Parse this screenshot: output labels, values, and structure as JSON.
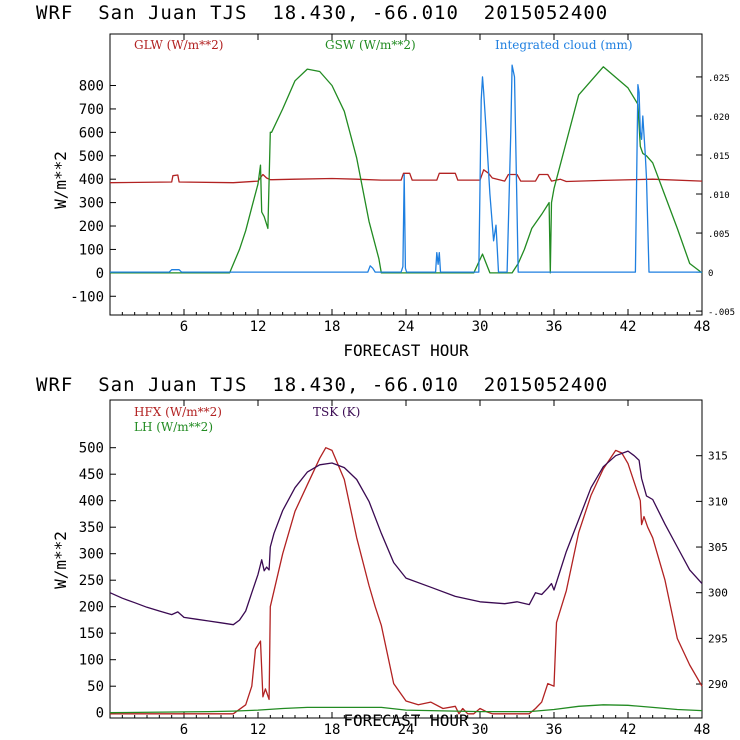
{
  "charts": [
    {
      "title": "WRF  San Juan TJS  18.430, -66.010  2015052400",
      "chart_data": {
        "type": "line",
        "xlabel": "FORECAST HOUR",
        "ylabel": "W/m**2",
        "xlim": [
          0,
          48
        ],
        "ylim": [
          -180,
          1020
        ],
        "x_ticks": [
          6,
          12,
          18,
          24,
          30,
          36,
          42,
          48
        ],
        "y_ticks": [
          -100,
          0,
          100,
          200,
          300,
          400,
          500,
          600,
          700,
          800
        ],
        "y2lim": [
          -0.0055,
          0.0305
        ],
        "y2_ticks": [
          "-.005",
          "0",
          ".005",
          ".010",
          ".015",
          ".020",
          ".025"
        ],
        "y2_tick_values": [
          -0.005,
          0,
          0.005,
          0.01,
          0.015,
          0.02,
          0.025
        ],
        "series": [
          {
            "name": "GLW (W/m**2)",
            "color": "#b22222",
            "axis": "left",
            "x": [
              0,
              5,
              5.1,
              5.5,
              5.6,
              10,
              12,
              12.4,
              12.7,
              13,
              13.2,
              15,
              18,
              20,
              22,
              23.6,
              23.8,
              24.3,
              24.5,
              26.5,
              26.7,
              28,
              28.2,
              30,
              30.3,
              30.7,
              31,
              32,
              32.3,
              33,
              33.3,
              34.5,
              34.8,
              35.5,
              35.8,
              36.5,
              37,
              40,
              44,
              48
            ],
            "y": [
              385,
              388,
              415,
              418,
              388,
              385,
              392,
              420,
              405,
              398,
              398,
              400,
              403,
              400,
              396,
              396,
              425,
              425,
              396,
              396,
              425,
              425,
              396,
              396,
              440,
              425,
              405,
              392,
              420,
              420,
              392,
              392,
              420,
              420,
              392,
              400,
              390,
              395,
              400,
              392
            ]
          },
          {
            "name": "GSW (W/m**2)",
            "color": "#228b22",
            "axis": "left",
            "x": [
              0,
              9.7,
              10.5,
              11,
              11.5,
              12,
              12.2,
              12.3,
              12.5,
              12.8,
              13,
              13.1,
              14,
              15,
              16,
              17,
              18,
              19,
              20,
              21,
              21.8,
              22,
              29.5,
              30.2,
              30.8,
              31.2,
              32,
              32.6,
              33.1,
              33.6,
              34.2,
              35,
              35.6,
              35.7,
              35.8,
              36,
              38,
              40,
              42,
              42.8,
              43,
              43.2,
              43.5,
              44,
              45,
              46,
              47,
              48
            ],
            "y": [
              0,
              0,
              100,
              180,
              280,
              380,
              460,
              260,
              240,
              190,
              600,
              600,
              700,
              820,
              870,
              860,
              800,
              690,
              490,
              220,
              60,
              0,
              0,
              80,
              0,
              0,
              0,
              0,
              40,
              100,
              190,
              250,
              300,
              0,
              300,
              360,
              760,
              880,
              790,
              720,
              540,
              510,
              500,
              470,
              330,
              190,
              40,
              0
            ]
          },
          {
            "name": "Integrated cloud (mm)",
            "color": "#1e7fe0",
            "axis": "right",
            "x": [
              0,
              4.8,
              5,
              5.6,
              5.8,
              20.9,
              21.1,
              21.3,
              21.5,
              23.6,
              23.75,
              23.85,
              23.95,
              24.05,
              26.4,
              26.5,
              26.6,
              26.7,
              26.8,
              29.9,
              30.1,
              30.2,
              30.3,
              30.5,
              30.8,
              31.1,
              31.3,
              31.5,
              32.2,
              32.5,
              32.6,
              32.8,
              33.1,
              34,
              42.6,
              42.8,
              42.9,
              43,
              43.1,
              43.2,
              43.4,
              43.5,
              43.7,
              48
            ],
            "y": [
              0,
              0,
              0.0003,
              0.0003,
              0,
              0,
              0.0008,
              0.0005,
              0,
              0,
              0.0007,
              0.0125,
              0.0005,
              0,
              0,
              0.0025,
              0.001,
              0.0025,
              0,
              0,
              0.022,
              0.025,
              0.023,
              0.018,
              0.01,
              0.004,
              0.006,
              0,
              0,
              0.018,
              0.0265,
              0.025,
              0,
              0,
              0,
              0.024,
              0.023,
              0.018,
              0.017,
              0.02,
              0.015,
              0.012,
              0,
              0
            ]
          }
        ]
      }
    },
    {
      "title": "WRF  San Juan TJS  18.430, -66.010  2015052400",
      "chart_data": {
        "type": "line",
        "xlabel": "FORECAST HOUR",
        "ylabel": "W/m**2",
        "xlim": [
          0,
          48
        ],
        "ylim": [
          -10,
          590
        ],
        "x_ticks": [
          6,
          12,
          18,
          24,
          30,
          36,
          42,
          48
        ],
        "y_ticks": [
          0,
          50,
          100,
          150,
          200,
          250,
          300,
          350,
          400,
          450,
          500
        ],
        "y2lim": [
          286.28,
          321.1
        ],
        "y2_ticks": [
          "290",
          "295",
          "300",
          "305",
          "310",
          "315"
        ],
        "y2_tick_values": [
          290,
          295,
          300,
          305,
          310,
          315
        ],
        "series": [
          {
            "name": "HFX (W/m**2)",
            "color": "#b22222",
            "axis": "left",
            "x": [
              0,
              10,
              11,
              11.5,
              11.8,
              12.2,
              12.4,
              12.6,
              12.9,
              13,
              14,
              15,
              16,
              17,
              17.5,
              18,
              19,
              20,
              21,
              21.5,
              22,
              22.5,
              23,
              24,
              25,
              26,
              27,
              28,
              28.3,
              28.6,
              29,
              29.5,
              30,
              30.5,
              31,
              32,
              33,
              34,
              34.5,
              35,
              35.5,
              36,
              36.2,
              37,
              38,
              39,
              40,
              41,
              41.5,
              42,
              43,
              43.1,
              43.3,
              43.6,
              44,
              45,
              46,
              47,
              48
            ],
            "y": [
              -2,
              -2,
              15,
              50,
              120,
              135,
              30,
              45,
              25,
              200,
              300,
              380,
              430,
              480,
              500,
              495,
              440,
              330,
              240,
              200,
              165,
              110,
              55,
              22,
              15,
              20,
              8,
              12,
              -2,
              8,
              -2,
              -2,
              8,
              2,
              -2,
              -2,
              -2,
              -2,
              8,
              20,
              55,
              50,
              170,
              230,
              340,
              410,
              460,
              495,
              490,
              470,
              400,
              355,
              370,
              350,
              330,
              250,
              140,
              90,
              50
            ]
          },
          {
            "name": "LH (W/m**2)",
            "color": "#228b22",
            "axis": "left",
            "x": [
              0,
              8,
              10,
              12,
              14,
              16,
              18,
              20,
              22,
              24,
              30,
              34,
              36,
              38,
              40,
              42,
              44,
              46,
              48
            ],
            "y": [
              0,
              2,
              3,
              5,
              8,
              10,
              10,
              10,
              10,
              5,
              2,
              2,
              6,
              12,
              15,
              14,
              10,
              6,
              4
            ]
          },
          {
            "name": "TSK (K)",
            "color": "#3a0a52",
            "axis": "right",
            "x": [
              0,
              1,
              2,
              3,
              4,
              5,
              5.5,
              6,
              7,
              8,
              9,
              10,
              10.5,
              11,
              11.5,
              12,
              12.3,
              12.5,
              12.7,
              12.9,
              13,
              13.3,
              14,
              15,
              16,
              17,
              18,
              19,
              20,
              21,
              22,
              23,
              24,
              26,
              28,
              30,
              32,
              33,
              34,
              34.5,
              35,
              35.5,
              35.8,
              36,
              37,
              38,
              39,
              40,
              41,
              42,
              42.5,
              42.9,
              43.1,
              43.5,
              44,
              45,
              46,
              47,
              48
            ],
            "y": [
              300.0,
              299.4,
              298.9,
              298.4,
              298.0,
              297.6,
              297.9,
              297.3,
              297.1,
              296.9,
              296.7,
              296.5,
              297.0,
              298.0,
              300.0,
              302.0,
              303.6,
              302.4,
              302.8,
              302.5,
              305.0,
              306.5,
              309.0,
              311.5,
              313.2,
              314.0,
              314.2,
              313.7,
              312.4,
              310.0,
              306.5,
              303.3,
              301.6,
              300.6,
              299.6,
              299.0,
              298.8,
              299.0,
              298.7,
              300.0,
              299.8,
              300.5,
              301.0,
              300.3,
              304.5,
              308.0,
              311.5,
              313.8,
              315.0,
              315.5,
              315.0,
              314.5,
              312.5,
              310.6,
              310.2,
              307.5,
              305.0,
              302.5,
              301.0
            ]
          }
        ]
      }
    }
  ]
}
